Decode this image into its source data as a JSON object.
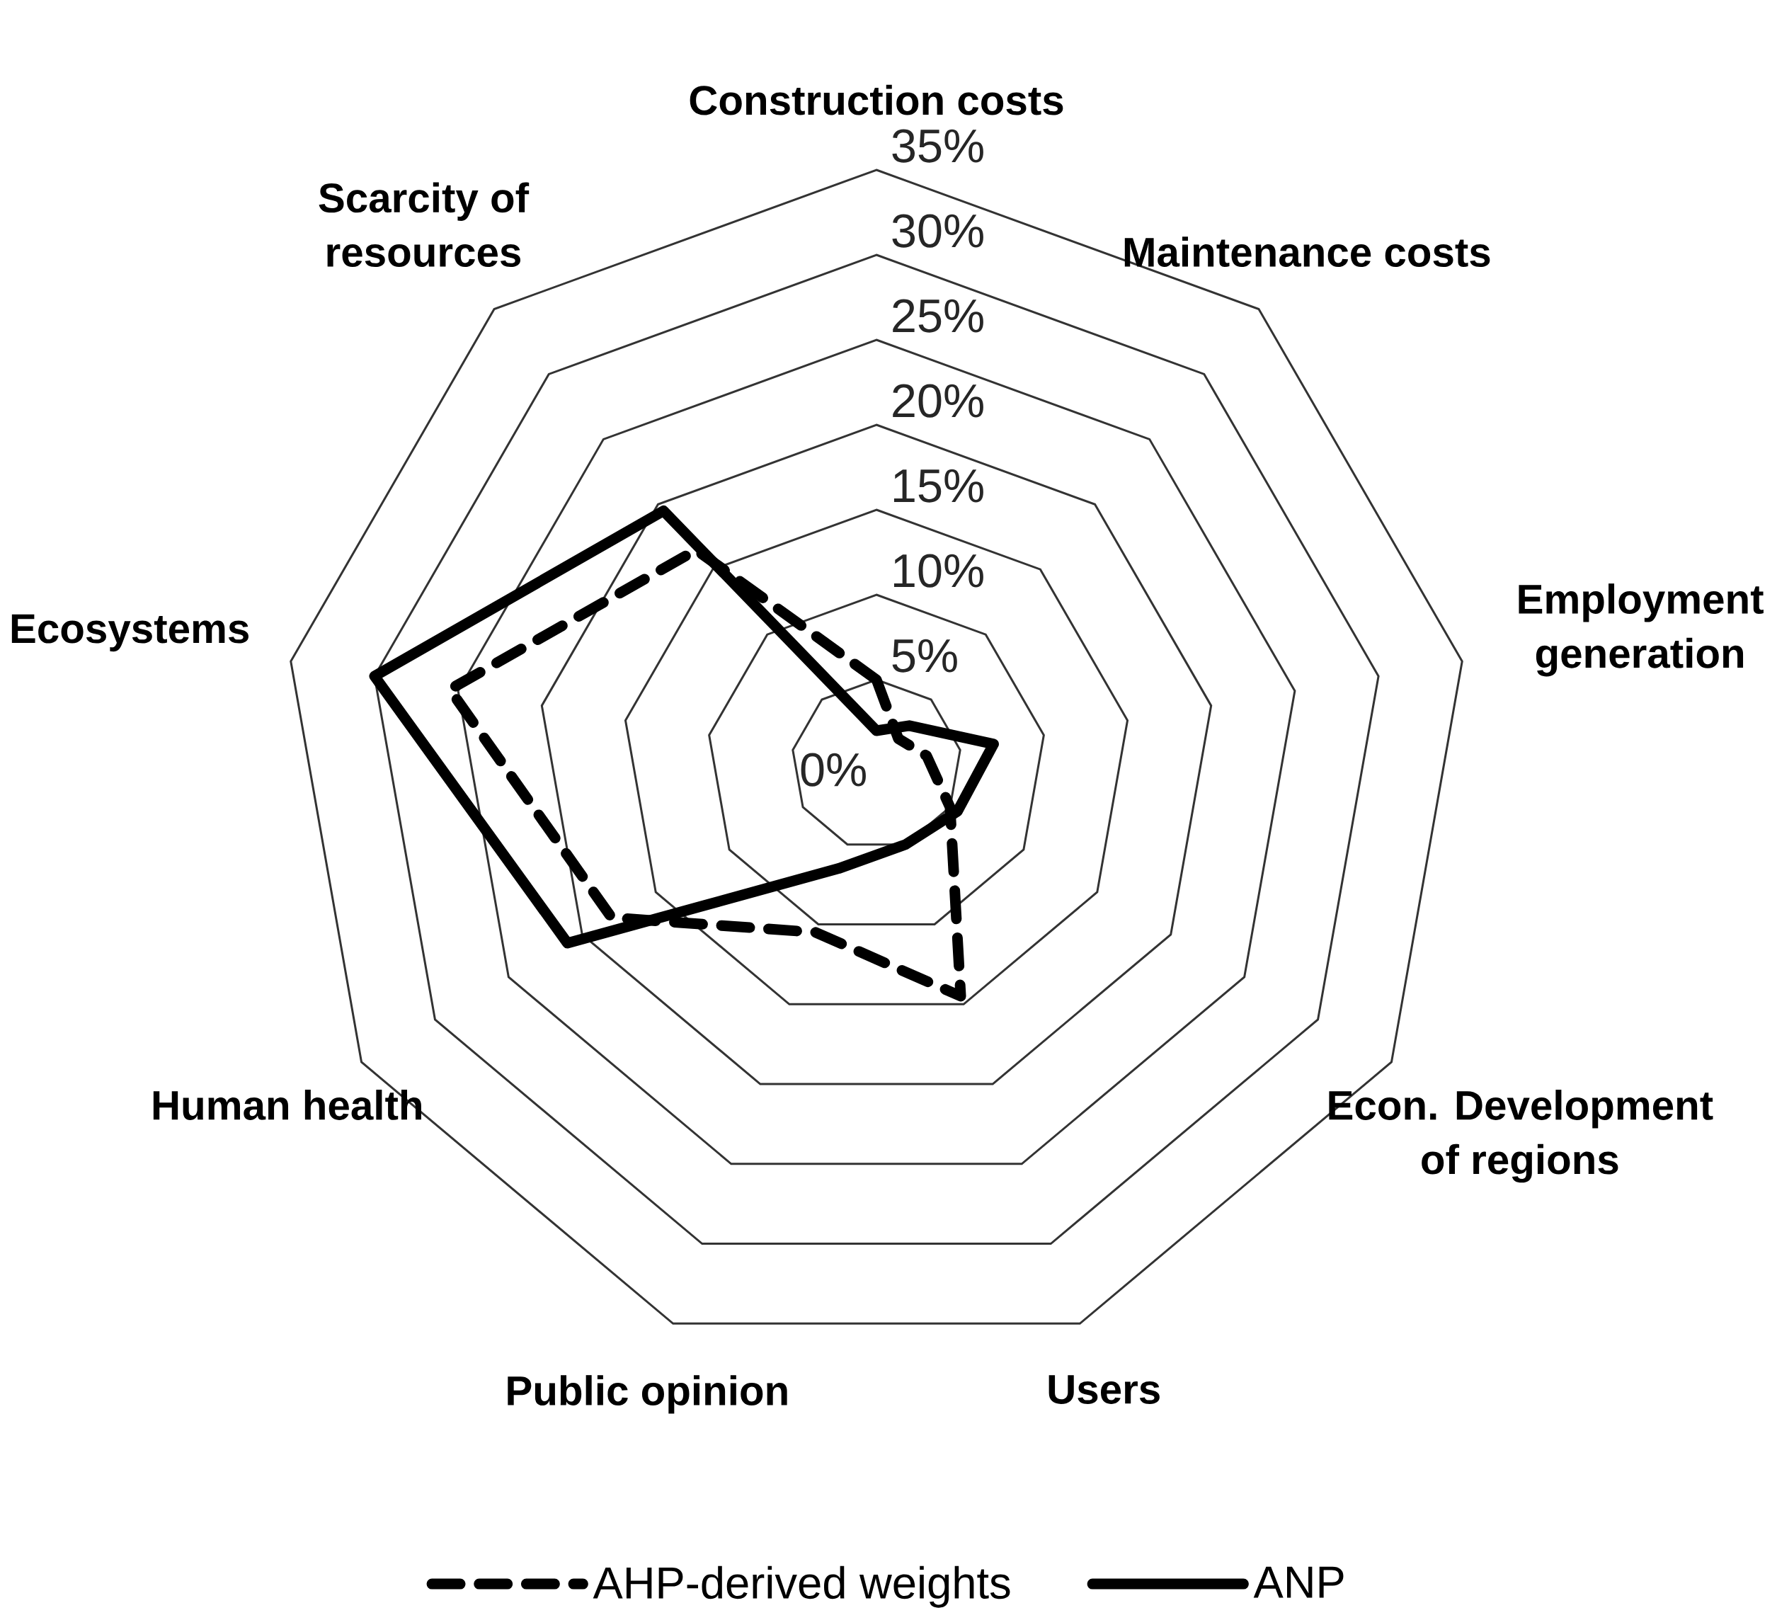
{
  "chart_data": {
    "type": "radar",
    "categories": [
      "Construction costs",
      "Maintenance costs",
      "Employment generation",
      "Econ. Development of regions",
      "Users",
      "Public opinion",
      "Human health",
      "Ecosystems",
      "Scarcity of resources"
    ],
    "ylim": [
      0,
      35
    ],
    "yticks": [
      {
        "value": 0,
        "label": "0%"
      },
      {
        "value": 5,
        "label": "5%"
      },
      {
        "value": 10,
        "label": "10%"
      },
      {
        "value": 15,
        "label": "15%"
      },
      {
        "value": 20,
        "label": "20%"
      },
      {
        "value": 25,
        "label": "25%"
      },
      {
        "value": 30,
        "label": "30%"
      },
      {
        "value": 35,
        "label": "35%"
      }
    ],
    "grid": true,
    "legend": "bottom",
    "series": [
      {
        "name": "AHP-derived weights",
        "color": "#000000",
        "line_style": "dashed",
        "values": [
          5,
          2,
          3,
          5,
          14.5,
          10.5,
          18,
          25.5,
          16.5
        ]
      },
      {
        "name": "ANP",
        "color": "#000000",
        "line_style": "solid",
        "values": [
          2,
          3,
          7,
          5.5,
          5,
          6.5,
          21,
          30,
          19.5
        ]
      }
    ]
  }
}
